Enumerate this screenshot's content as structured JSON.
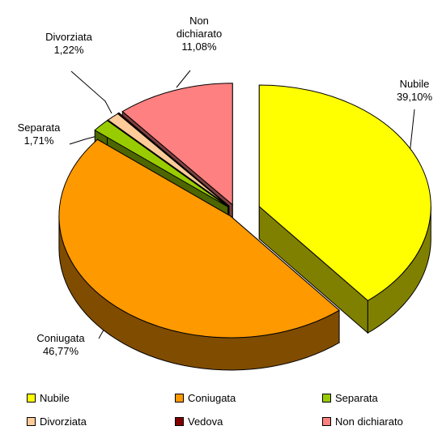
{
  "chart_data": {
    "type": "pie",
    "categories": [
      "Nubile",
      "Coniugata",
      "Separata",
      "Divorziata",
      "Vedova",
      "Non dichiarato"
    ],
    "values": [
      39.1,
      46.77,
      1.71,
      1.22,
      0.12,
      11.08
    ],
    "value_labels": [
      "39,10%",
      "46,77%",
      "1,71%",
      "1,22%",
      null,
      "11,08%"
    ],
    "colors": [
      "#ffff00",
      "#ff9900",
      "#99cc00",
      "#ffcc99",
      "#800000",
      "#ff8080"
    ],
    "side_colors": [
      "#808000",
      "#804c00",
      "#4d6600",
      "#806650",
      "#400000",
      "#804040"
    ],
    "legend": "bottom"
  }
}
